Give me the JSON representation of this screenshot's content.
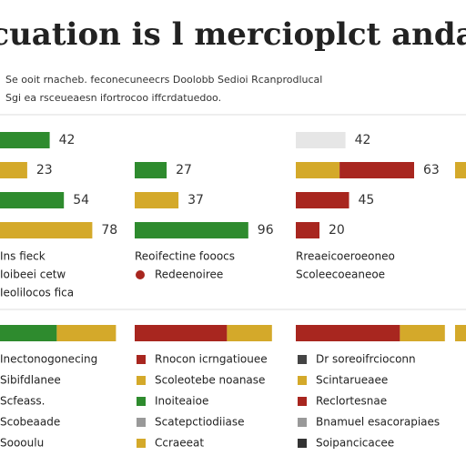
{
  "header": {
    "title": "cuation is l mercioplct anda",
    "subtitle": [
      "Se ooit rnacheb. feconecuneecrs Doolobb Sedioi Rcanprodlucal",
      "Sgi ea rsceueaesn ifortrocoo iffcrdatuedoo."
    ]
  },
  "top_panels": [
    {
      "rows": [
        [
          {
            "value": 42,
            "color": "#2e8b2e"
          }
        ],
        [
          {
            "value": 23,
            "color": "#d4a92a"
          }
        ],
        [
          {
            "value": 54,
            "color": "#2e8b2e"
          }
        ],
        [
          {
            "value": 78,
            "color": "#d4a92a"
          }
        ]
      ],
      "legend": [
        "Ins fieck",
        "Ioibeei cetw",
        "Ieolilocos fica"
      ]
    },
    {
      "rows": [
        null,
        [
          {
            "value": 27,
            "color": "#2e8b2e"
          }
        ],
        [
          {
            "value": 37,
            "color": "#d4a92a"
          }
        ],
        [
          {
            "value": 96,
            "color": "#2e8b2e"
          }
        ]
      ],
      "legend": [
        "Reoifectine fooocs",
        "Redeenoiree"
      ]
    },
    {
      "rows": [
        [
          {
            "value": 42,
            "color": "#e6e6e6"
          }
        ],
        [
          {
            "value": 37,
            "color": "#d4a92a"
          },
          {
            "value": 63,
            "color": "#a8261f"
          }
        ],
        [
          {
            "value": 45,
            "color": "#a8261f"
          }
        ],
        [
          {
            "value": 20,
            "color": "#a8261f"
          }
        ]
      ],
      "legend": [
        "Rreaeicoeroeoneo",
        "Scoleecoeaneoe"
      ]
    },
    {
      "rows": [
        null,
        [
          {
            "value": 10,
            "color": "#d4a92a"
          }
        ],
        null,
        null
      ],
      "legend": []
    }
  ],
  "bottom_panels": [
    {
      "bar": [
        {
          "value": 48,
          "color": "#2e8b2e"
        },
        {
          "value": 50,
          "color": "#d4a92a"
        }
      ],
      "items": [
        {
          "text": "Inectonogonecing"
        },
        {
          "text": "Sibifdlanee"
        },
        {
          "text": "Scfeass."
        },
        {
          "text": "Scobeaade"
        },
        {
          "text": "Soooulu"
        }
      ]
    },
    {
      "bar": [
        {
          "value": 78,
          "color": "#a8261f"
        },
        {
          "value": 38,
          "color": "#d4a92a"
        }
      ],
      "items": [
        {
          "text": "Rnocon icrngatiouee",
          "color": "#a8261f"
        },
        {
          "text": "Scoleotebe noanase",
          "color": "#d4a92a"
        },
        {
          "text": "Inoiteaioe",
          "color": "#2e8b2e"
        },
        {
          "text": "Scatepctiodiiase",
          "color": "#999999"
        },
        {
          "text": "Ccraeeat",
          "color": "#d4a92a"
        }
      ]
    },
    {
      "bar": [
        {
          "value": 88,
          "color": "#a8261f"
        },
        {
          "value": 38,
          "color": "#d4a92a"
        }
      ],
      "items": [
        {
          "text": "Dr soreoifrcioconn",
          "color": "#444444"
        },
        {
          "text": "Scintarueaee",
          "color": "#d4a92a"
        },
        {
          "text": "Reclortesnae",
          "color": "#a8261f"
        },
        {
          "text": "Bnamuel esacorapiaes",
          "color": "#999999"
        },
        {
          "text": "Soipancicacee",
          "color": "#333333"
        }
      ]
    },
    {
      "bar": [
        {
          "value": 10,
          "color": "#d4a92a"
        }
      ],
      "items": []
    }
  ]
}
